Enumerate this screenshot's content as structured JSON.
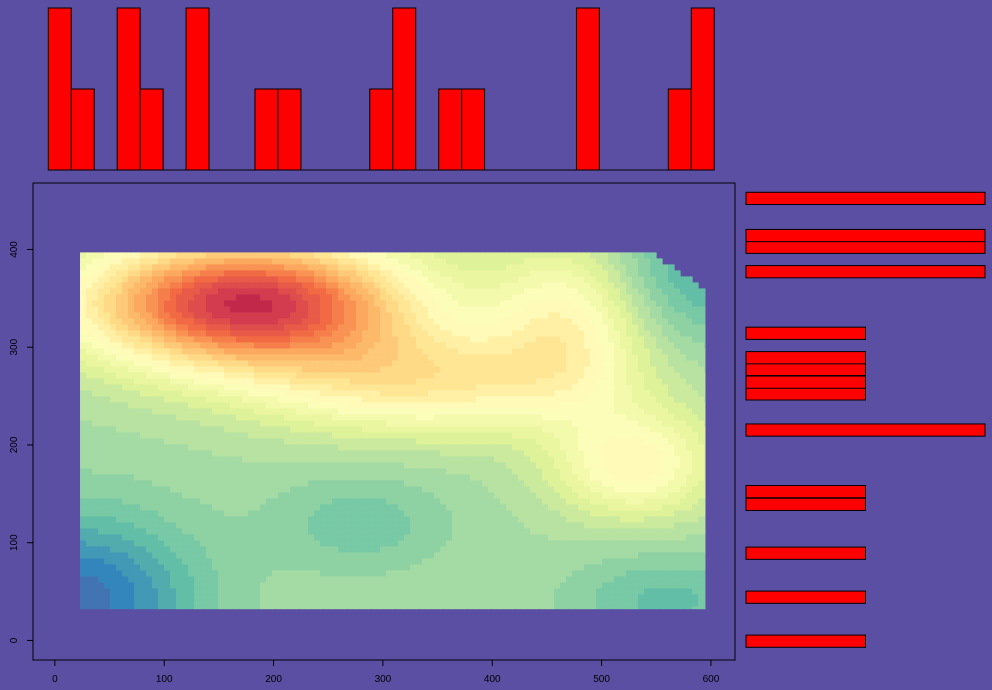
{
  "colors": {
    "background": "#5b4fa3",
    "bar_fill": "#ff0000",
    "bar_stroke": "#000000",
    "axis": "#000000"
  },
  "chart_data": [
    {
      "type": "heatmap",
      "x_ticks": [
        0,
        100,
        200,
        300,
        400,
        500,
        600
      ],
      "y_ticks": [
        0,
        100,
        200,
        300,
        400
      ],
      "xlim": [
        -20,
        622
      ],
      "ylim": [
        -20,
        468
      ],
      "data_extent": {
        "x": [
          23,
          595
        ],
        "y": [
          32,
          397
        ]
      },
      "palette": "Spectral (red high, blue low)",
      "peaks": [
        {
          "x": 175,
          "y": 345,
          "level": "high"
        },
        {
          "x": 530,
          "y": 180,
          "level": "medium-high"
        },
        {
          "x": 30,
          "y": 40,
          "level": "low"
        },
        {
          "x": 595,
          "y": 380,
          "level": "low"
        }
      ]
    },
    {
      "type": "bar",
      "position": "top",
      "bin_width": 21,
      "bin_starts": [
        -6,
        15,
        57,
        78,
        120,
        183,
        204,
        288,
        309,
        351,
        372,
        477,
        561,
        582
      ],
      "counts": [
        2,
        1,
        2,
        1,
        2,
        1,
        1,
        1,
        2,
        1,
        1,
        2,
        1,
        2
      ],
      "ylim": [
        0,
        2
      ]
    },
    {
      "type": "bar",
      "position": "right",
      "orientation": "horizontal",
      "bin_height": 12.5,
      "bin_starts": [
        -7,
        38,
        83,
        133,
        146,
        209,
        246,
        258,
        271,
        283,
        308,
        371,
        396,
        408,
        446
      ],
      "counts": [
        1,
        1,
        1,
        1,
        1,
        2,
        1,
        1,
        1,
        1,
        1,
        2,
        2,
        2,
        2
      ],
      "xlim": [
        0,
        2
      ]
    }
  ]
}
